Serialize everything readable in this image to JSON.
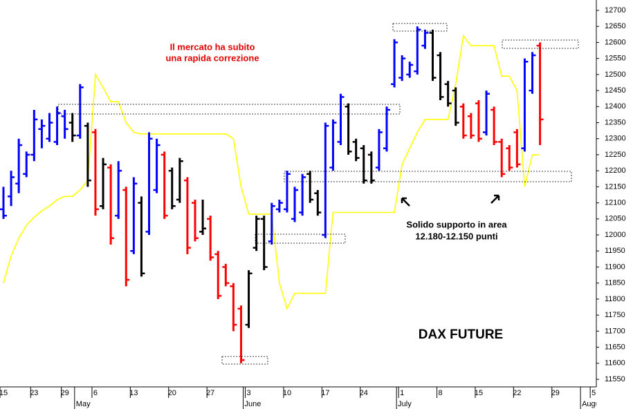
{
  "chart_data": {
    "type": "ohlc",
    "title": "DAX FUTURE",
    "annotations": [
      "Il mercato ha subito",
      "una rapida correzione",
      "Solido supporto in area",
      "12.180-12.150 punti"
    ],
    "categories": [
      "15",
      null,
      null,
      null,
      "23",
      null,
      null,
      null,
      "29",
      null,
      null,
      null,
      "6",
      null,
      null,
      null,
      null,
      "13",
      null,
      null,
      null,
      null,
      "20",
      null,
      null,
      null,
      null,
      "27",
      null,
      null,
      null,
      null,
      "3",
      null,
      null,
      null,
      null,
      "10",
      null,
      null,
      null,
      null,
      "17",
      null,
      null,
      null,
      null,
      "24",
      null,
      null,
      null,
      null,
      "1",
      null,
      null,
      null,
      null,
      "8",
      null,
      null,
      null,
      null,
      "15",
      null,
      null,
      null,
      null,
      "22",
      null,
      null,
      null,
      null,
      "29",
      null,
      null,
      null,
      null,
      "5"
    ],
    "months": [
      null,
      null,
      null,
      null,
      null,
      null,
      null,
      null,
      null,
      null,
      "May",
      null,
      null,
      null,
      null,
      null,
      null,
      null,
      null,
      null,
      null,
      null,
      null,
      null,
      null,
      null,
      null,
      null,
      null,
      null,
      null,
      null,
      "June",
      null,
      null,
      null,
      null,
      null,
      null,
      null,
      null,
      null,
      null,
      null,
      null,
      null,
      null,
      null,
      null,
      null,
      null,
      null,
      "July",
      null,
      null,
      null,
      null,
      null,
      null,
      null,
      null,
      null,
      null,
      null,
      null,
      null,
      null,
      null,
      null,
      null,
      null,
      null,
      null,
      null,
      null,
      null,
      "August",
      null
    ],
    "high": [
      12150,
      12200,
      12300,
      12260,
      12390,
      12360,
      12380,
      12400,
      12390,
      12380,
      12470,
      12350,
      12330,
      12240,
      12220,
      12230,
      12150,
      12180,
      12120,
      12320,
      12300,
      12260,
      12210,
      12240,
      12180,
      12110,
      12110,
      12060,
      11950,
      11910,
      11850,
      11780,
      11890,
      12060,
      12060,
      12100,
      12110,
      12200,
      12150,
      12190,
      12200,
      12140,
      12350,
      12360,
      12440,
      12410,
      12300,
      12280,
      12260,
      12330,
      12400,
      12610,
      12560,
      12540,
      12650,
      12640,
      12640,
      12570,
      12480,
      12460,
      12410,
      12380,
      12420,
      12450,
      12400,
      12300,
      12280,
      12330,
      12550,
      12570,
      12600,
      null,
      null,
      null,
      null,
      null,
      null,
      null
    ],
    "low": [
      12050,
      12090,
      12130,
      12180,
      12230,
      12270,
      12290,
      12280,
      12300,
      12290,
      12300,
      12150,
      12060,
      12080,
      11970,
      12050,
      11840,
      11940,
      11870,
      12000,
      12130,
      12050,
      12080,
      12100,
      11940,
      11980,
      12000,
      11920,
      11800,
      11840,
      11700,
      11600,
      11710,
      11950,
      11890,
      11970,
      12070,
      12070,
      12040,
      12060,
      12100,
      12060,
      11990,
      12200,
      12280,
      12250,
      12230,
      12160,
      12160,
      12200,
      12260,
      12460,
      12480,
      12490,
      12500,
      12580,
      12480,
      12420,
      12400,
      12340,
      12300,
      12300,
      12290,
      12310,
      12280,
      12180,
      12200,
      12210,
      12260,
      12440,
      12280,
      null,
      null,
      null,
      null,
      null,
      null,
      null
    ],
    "open": [
      12080,
      12120,
      12160,
      12190,
      12250,
      12330,
      12300,
      12290,
      12370,
      12350,
      12310,
      12340,
      12320,
      12090,
      12210,
      12060,
      12140,
      11950,
      12100,
      12010,
      12140,
      12250,
      12200,
      12110,
      12170,
      12100,
      12010,
      12050,
      11940,
      11900,
      11840,
      11770,
      11720,
      11960,
      12050,
      11980,
      12080,
      12080,
      12050,
      12070,
      12190,
      12130,
      12000,
      12210,
      12290,
      12400,
      12290,
      12270,
      12250,
      12210,
      12270,
      12470,
      12490,
      12500,
      12510,
      12590,
      12630,
      12560,
      12470,
      12450,
      12400,
      12370,
      12410,
      12320,
      12390,
      12290,
      12270,
      12320,
      12270,
      12450,
      12590,
      null,
      null,
      null,
      null,
      null,
      null,
      null
    ],
    "close": [
      12060,
      12180,
      12280,
      12250,
      12360,
      12340,
      12350,
      12380,
      12330,
      12310,
      12460,
      12170,
      12080,
      12220,
      11990,
      12200,
      11860,
      12160,
      11880,
      12300,
      12280,
      12060,
      12090,
      12230,
      11960,
      11990,
      12020,
      11930,
      11810,
      11850,
      11720,
      11610,
      11880,
      12050,
      11900,
      12090,
      12100,
      12190,
      12140,
      12180,
      12110,
      12070,
      12340,
      12350,
      12430,
      12260,
      12240,
      12170,
      12170,
      12320,
      12390,
      12600,
      12550,
      12530,
      12640,
      12630,
      12490,
      12430,
      12410,
      12350,
      12310,
      12310,
      12300,
      12440,
      12290,
      12190,
      12210,
      12220,
      12540,
      12560,
      12360,
      null,
      null,
      null,
      null,
      null,
      null,
      null
    ],
    "colors": [
      "#0000ff",
      "#0000ff",
      "#0000ff",
      "#0000ff",
      "#0000ff",
      "#0000ff",
      "#0000ff",
      "#0000ff",
      "#0000ff",
      "#000000",
      "#0000ff",
      "#000000",
      "#ff0000",
      "#000000",
      "#ff0000",
      "#0000ff",
      "#ff0000",
      "#0000ff",
      "#000000",
      "#0000ff",
      "#0000ff",
      "#ff0000",
      "#000000",
      "#000000",
      "#ff0000",
      "#ff0000",
      "#000000",
      "#ff0000",
      "#ff0000",
      "#ff0000",
      "#ff0000",
      "#ff0000",
      "#000000",
      "#000000",
      "#000000",
      "#0000ff",
      "#0000ff",
      "#0000ff",
      "#0000ff",
      "#0000ff",
      "#000000",
      "#000000",
      "#0000ff",
      "#0000ff",
      "#0000ff",
      "#000000",
      "#000000",
      "#000000",
      "#000000",
      "#0000ff",
      "#0000ff",
      "#0000ff",
      "#0000ff",
      "#0000ff",
      "#0000ff",
      "#0000ff",
      "#000000",
      "#000000",
      "#000000",
      "#000000",
      "#ff0000",
      "#ff0000",
      "#ff0000",
      "#0000ff",
      "#ff0000",
      "#ff0000",
      "#ff0000",
      "#ff0000",
      "#0000ff",
      "#0000ff",
      "#ff0000",
      null,
      null,
      null,
      null,
      null,
      null,
      null
    ],
    "line": {
      "color": "#ffff00",
      "values": [
        11850,
        11935,
        11990,
        12030,
        12055,
        12075,
        12090,
        12110,
        12120,
        12120,
        12140,
        12170,
        12500,
        12460,
        12415,
        12415,
        12350,
        12320,
        12315,
        12315,
        12315,
        12315,
        12315,
        12315,
        12315,
        12315,
        12315,
        12315,
        12315,
        12315,
        12300,
        12150,
        12065,
        12065,
        12065,
        12065,
        11850,
        11770,
        11818,
        11818,
        11818,
        11818,
        11818,
        12070,
        12070,
        12070,
        12070,
        12070,
        12070,
        12070,
        12070,
        12070,
        12220,
        12270,
        12320,
        12360,
        12360,
        12360,
        12360,
        12470,
        12620,
        12590,
        12590,
        12590,
        12590,
        12495,
        12495,
        12450,
        12150,
        12250,
        12250,
        null,
        null,
        null,
        null,
        null,
        null,
        null
      ]
    },
    "ylim": [
      11550,
      12700
    ],
    "yticks": [
      11550,
      11600,
      11650,
      11700,
      11750,
      11800,
      11850,
      11900,
      11950,
      12000,
      12050,
      12100,
      12150,
      12200,
      12250,
      12300,
      12350,
      12400,
      12450,
      12500,
      12550,
      12600,
      12650,
      12700
    ],
    "grid": false
  }
}
